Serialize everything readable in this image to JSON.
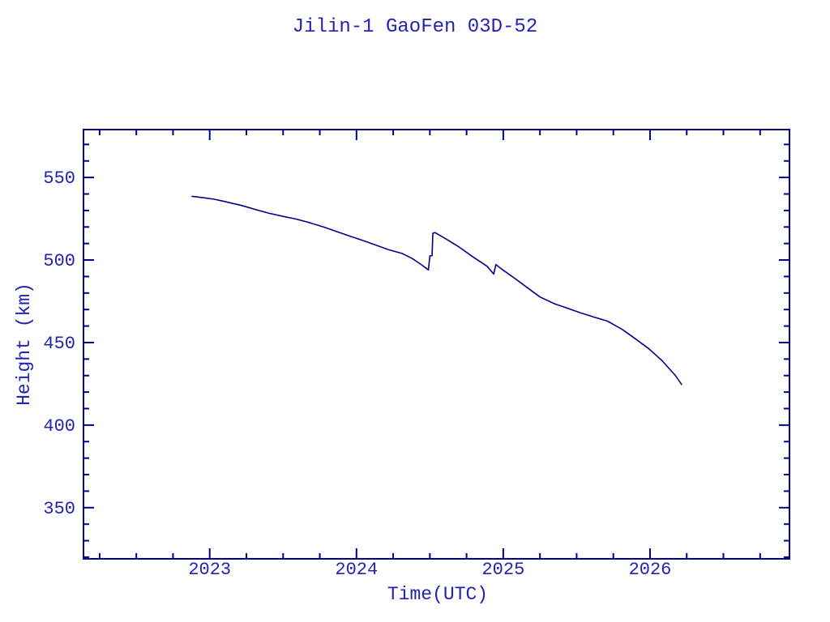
{
  "page": {
    "background": "#FFFFFF"
  },
  "chart_data": {
    "type": "line",
    "title": "Jilin-1 GaoFen 03D-52",
    "xlabel": "Time(UTC)",
    "ylabel": "Height (km)",
    "xlim": [
      2022.14,
      2026.95
    ],
    "ylim": [
      319,
      579
    ],
    "x_major_ticks": [
      2023,
      2024,
      2025,
      2026
    ],
    "x_major_tick_labels": [
      "2023",
      "2024",
      "2025",
      "2026"
    ],
    "x_minor_tick_start": 2022.25,
    "x_minor_tick_step": 0.25,
    "y_major_ticks": [
      350,
      400,
      450,
      500,
      550
    ],
    "y_major_tick_labels": [
      "350",
      "400",
      "450",
      "500",
      "550"
    ],
    "y_minor_tick_start": 320,
    "y_minor_tick_step": 10,
    "grid": false,
    "legend": "none",
    "colors": {
      "line": "#00008B",
      "axis": "#00008B",
      "text": "#2323B2",
      "background": "#FFFFFF"
    },
    "series": [
      {
        "name": "Height (km)",
        "points": [
          [
            2022.88,
            538.6
          ],
          [
            2022.96,
            537.7
          ],
          [
            2023.03,
            536.8
          ],
          [
            2023.1,
            535.5
          ],
          [
            2023.16,
            534.2
          ],
          [
            2023.22,
            533.0
          ],
          [
            2023.32,
            530.4
          ],
          [
            2023.4,
            528.4
          ],
          [
            2023.5,
            526.4
          ],
          [
            2023.58,
            525.0
          ],
          [
            2023.67,
            522.9
          ],
          [
            2023.78,
            519.9
          ],
          [
            2023.86,
            517.4
          ],
          [
            2023.95,
            514.6
          ],
          [
            2024.04,
            511.9
          ],
          [
            2024.13,
            509.1
          ],
          [
            2024.22,
            506.2
          ],
          [
            2024.31,
            504.0
          ],
          [
            2024.38,
            500.9
          ],
          [
            2024.44,
            497.3
          ],
          [
            2024.49,
            494.0
          ],
          [
            2024.5,
            502.5
          ],
          [
            2024.515,
            502.6
          ],
          [
            2024.52,
            516.2
          ],
          [
            2024.535,
            516.6
          ],
          [
            2024.61,
            512.7
          ],
          [
            2024.7,
            507.8
          ],
          [
            2024.79,
            502.1
          ],
          [
            2024.89,
            496.2
          ],
          [
            2024.935,
            491.5
          ],
          [
            2024.95,
            497.2
          ],
          [
            2025.0,
            493.8
          ],
          [
            2025.07,
            489.4
          ],
          [
            2025.16,
            483.5
          ],
          [
            2025.25,
            477.6
          ],
          [
            2025.35,
            473.5
          ],
          [
            2025.44,
            470.7
          ],
          [
            2025.53,
            467.9
          ],
          [
            2025.62,
            465.4
          ],
          [
            2025.71,
            463.0
          ],
          [
            2025.81,
            458.0
          ],
          [
            2025.9,
            452.3
          ],
          [
            2025.99,
            446.4
          ],
          [
            2026.08,
            439.2
          ],
          [
            2026.17,
            430.3
          ],
          [
            2026.215,
            424.6
          ]
        ]
      }
    ]
  }
}
